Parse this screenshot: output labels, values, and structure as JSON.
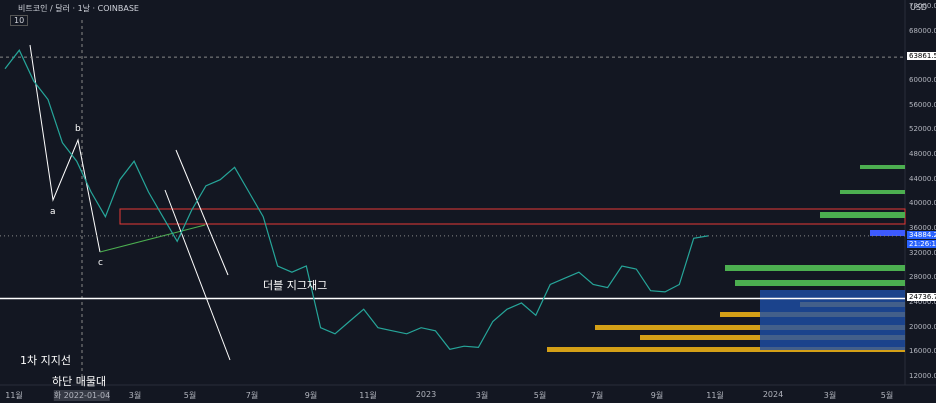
{
  "header": {
    "symbol": "비트코인 / 달러 · 1날 · COINBASE",
    "badge": "10",
    "currency": "USD"
  },
  "price_axis": {
    "ylim": [
      12000,
      72000
    ],
    "labels": [
      "72000.00",
      "68000.00",
      "64000.00",
      "60000.00",
      "56000.00",
      "52000.00",
      "48000.00",
      "44000.00",
      "40000.00",
      "36000.00",
      "32000.00",
      "28000.00",
      "24000.00",
      "20000.00",
      "16000.00",
      "12000.00"
    ]
  },
  "time_axis": [
    "11월",
    "화 2022-01-04",
    "3월",
    "5월",
    "7월",
    "9월",
    "11월",
    "2023",
    "3월",
    "5월",
    "7월",
    "9월",
    "11월",
    "2024",
    "3월",
    "5월"
  ],
  "markers": [
    {
      "value": 63861.57,
      "label": "63861.57"
    },
    {
      "value": 34884.27,
      "label": "34884.27",
      "sub": "21:26:16"
    },
    {
      "value": 24736.79,
      "label": "24736.79"
    }
  ],
  "annotations": {
    "a": "a",
    "b": "b",
    "c": "c",
    "pattern": "더블 지그재그",
    "support": "1차 지지선",
    "zone": "하단 매물대"
  },
  "price_trace": [
    62000,
    65000,
    60000,
    57000,
    50000,
    47000,
    42000,
    38000,
    44000,
    47000,
    42000,
    38000,
    34000,
    39000,
    43000,
    44000,
    46000,
    42000,
    38000,
    30000,
    29000,
    30000,
    20000,
    19000,
    21000,
    23000,
    20000,
    19500,
    19000,
    20000,
    19500,
    16500,
    17000,
    16800,
    21000,
    23000,
    24000,
    22000,
    27000,
    28000,
    29000,
    27000,
    26500,
    30000,
    29500,
    26000,
    25800,
    27000,
    34500,
    34884.27
  ]
}
